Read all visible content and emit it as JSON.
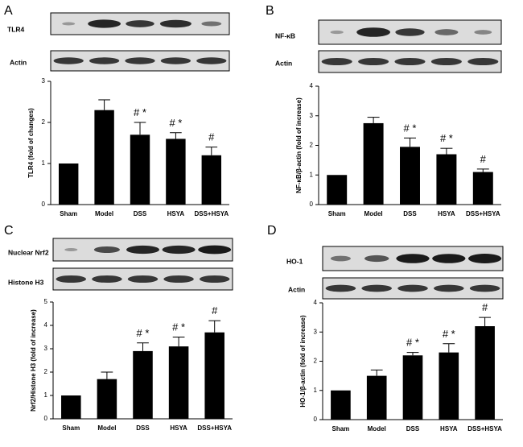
{
  "panels": [
    {
      "letter": "A",
      "blot_labels": [
        "TLR4",
        "Actin"
      ]
    },
    {
      "letter": "B",
      "blot_labels": [
        "NF-κB",
        "Actin"
      ]
    },
    {
      "letter": "C",
      "blot_labels": [
        "Nuclear Nrf2",
        "Histone H3"
      ]
    },
    {
      "letter": "D",
      "blot_labels": [
        "HO-1",
        "Actin"
      ]
    }
  ],
  "chart_data": [
    {
      "type": "bar",
      "panel": "A",
      "categories": [
        "Sham",
        "Model",
        "DSS",
        "HSYA",
        "DSS+HSYA"
      ],
      "values": [
        1.0,
        2.3,
        1.7,
        1.6,
        1.2
      ],
      "errors": [
        0,
        0.25,
        0.3,
        0.15,
        0.2
      ],
      "annotations": [
        "",
        "",
        "# *",
        "# *",
        "#"
      ],
      "ylabel": "TLR4 (fold of changes)",
      "ylim": [
        0,
        3
      ],
      "yticks": [
        0,
        1,
        2,
        3
      ]
    },
    {
      "type": "bar",
      "panel": "B",
      "categories": [
        "Sham",
        "Model",
        "DSS",
        "HSYA",
        "DSS+HSYA"
      ],
      "values": [
        1.0,
        2.75,
        1.95,
        1.7,
        1.1
      ],
      "errors": [
        0,
        0.2,
        0.3,
        0.2,
        0.1
      ],
      "annotations": [
        "",
        "",
        "# *",
        "# *",
        "#"
      ],
      "ylabel": "NF-κB/β-actin (fold of increase)",
      "ylim": [
        0,
        4
      ],
      "yticks": [
        0,
        1,
        2,
        3,
        4
      ]
    },
    {
      "type": "bar",
      "panel": "C",
      "categories": [
        "Sham",
        "Model",
        "DSS",
        "HSYA",
        "DSS+HSYA"
      ],
      "values": [
        1.0,
        1.7,
        2.9,
        3.1,
        3.7
      ],
      "errors": [
        0,
        0.3,
        0.35,
        0.4,
        0.5
      ],
      "annotations": [
        "",
        "",
        "# *",
        "# *",
        "#"
      ],
      "ylabel": "Nrf2/Histone H3 (fold of increase)",
      "ylim": [
        0,
        5
      ],
      "yticks": [
        0,
        1,
        2,
        3,
        4,
        5
      ]
    },
    {
      "type": "bar",
      "panel": "D",
      "categories": [
        "Sham",
        "Model",
        "DSS",
        "HSYA",
        "DSS+HSYA"
      ],
      "values": [
        1.0,
        1.5,
        2.2,
        2.3,
        3.2
      ],
      "errors": [
        0,
        0.2,
        0.1,
        0.3,
        0.3
      ],
      "annotations": [
        "",
        "",
        "# *",
        "# *",
        "#"
      ],
      "ylabel": "HO-1/β-actin (fold of increase)",
      "ylim": [
        0,
        4
      ],
      "yticks": [
        0,
        1,
        2,
        3,
        4
      ]
    }
  ]
}
